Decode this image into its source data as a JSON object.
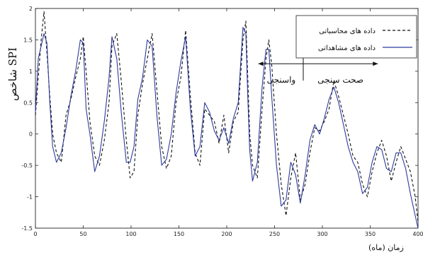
{
  "chart_data": {
    "type": "line",
    "ylabel": "شاخص SPI",
    "xlabel": "زمان (ماه)",
    "xlim": [
      0,
      400
    ],
    "ylim": [
      -1.5,
      2
    ],
    "xticks": [
      0,
      50,
      100,
      150,
      200,
      250,
      300,
      350,
      400
    ],
    "yticks": [
      -1.5,
      -1,
      -0.5,
      0,
      0.5,
      1,
      1.5,
      2
    ],
    "grid": false,
    "legend_position": "top-right",
    "series": [
      {
        "name": "داده های محاسباتی",
        "style": "dashed",
        "color": "#111111",
        "x": [
          0,
          3,
          6,
          9,
          12,
          15,
          18,
          22,
          27,
          32,
          37,
          42,
          47,
          50,
          53,
          57,
          62,
          67,
          72,
          77,
          80,
          85,
          90,
          95,
          99,
          103,
          107,
          112,
          117,
          122,
          127,
          132,
          137,
          142,
          147,
          152,
          157,
          162,
          167,
          172,
          177,
          182,
          187,
          192,
          197,
          202,
          207,
          212,
          217,
          220,
          222,
          224,
          227,
          232,
          237,
          241,
          244,
          247,
          252,
          257,
          262,
          267,
          272,
          277,
          282,
          287,
          292,
          297,
          302,
          307,
          312,
          317,
          322,
          327,
          332,
          337,
          342,
          347,
          352,
          357,
          362,
          367,
          372,
          377,
          382,
          387,
          392,
          397,
          400
        ],
        "y": [
          0.3,
          0.9,
          1.5,
          1.95,
          1.3,
          0.6,
          0.0,
          -0.3,
          -0.45,
          0.3,
          0.55,
          0.9,
          1.2,
          1.55,
          1.0,
          0.2,
          -0.35,
          -0.5,
          -0.1,
          0.5,
          1.4,
          1.6,
          0.8,
          -0.1,
          -0.7,
          -0.6,
          0.3,
          0.8,
          1.2,
          1.6,
          0.7,
          -0.2,
          -0.55,
          -0.35,
          0.5,
          0.9,
          1.65,
          0.6,
          -0.3,
          -0.5,
          0.4,
          0.3,
          0.2,
          -0.15,
          0.3,
          -0.3,
          0.2,
          0.35,
          1.5,
          1.8,
          0.9,
          0.0,
          -0.5,
          -0.7,
          0.4,
          1.2,
          1.5,
          1.1,
          0.0,
          -0.8,
          -1.3,
          -0.7,
          -0.3,
          -1.05,
          -0.8,
          -0.3,
          0.1,
          0.05,
          0.2,
          0.4,
          0.85,
          0.6,
          0.3,
          0.0,
          -0.35,
          -0.45,
          -0.8,
          -1.0,
          -0.6,
          -0.3,
          -0.1,
          -0.35,
          -0.75,
          -0.45,
          -0.2,
          -0.4,
          -0.6,
          -1.0,
          -1.4
        ]
      },
      {
        "name": "داده های مشاهداتی",
        "style": "solid",
        "color": "#2e3b9c",
        "x": [
          0,
          3,
          6,
          9,
          12,
          15,
          18,
          22,
          27,
          32,
          37,
          42,
          47,
          50,
          53,
          57,
          62,
          67,
          72,
          77,
          80,
          85,
          90,
          95,
          99,
          103,
          107,
          112,
          117,
          122,
          127,
          132,
          137,
          142,
          147,
          152,
          157,
          162,
          167,
          172,
          177,
          182,
          187,
          192,
          197,
          202,
          207,
          212,
          217,
          220,
          222,
          224,
          227,
          232,
          237,
          241,
          244,
          247,
          252,
          257,
          262,
          267,
          272,
          277,
          282,
          287,
          292,
          297,
          302,
          307,
          312,
          317,
          322,
          327,
          332,
          337,
          342,
          347,
          352,
          357,
          362,
          367,
          372,
          377,
          382,
          387,
          392,
          397,
          400
        ],
        "y": [
          0.35,
          1.2,
          1.4,
          1.6,
          1.45,
          0.5,
          -0.2,
          -0.45,
          -0.3,
          0.1,
          0.6,
          1.0,
          1.5,
          1.45,
          0.4,
          0.0,
          -0.6,
          -0.35,
          0.2,
          0.9,
          1.55,
          1.2,
          0.3,
          -0.45,
          -0.45,
          -0.2,
          0.55,
          0.9,
          1.5,
          1.4,
          0.3,
          -0.5,
          -0.4,
          0.0,
          0.65,
          1.15,
          1.55,
          0.4,
          -0.35,
          -0.2,
          0.5,
          0.35,
          0.05,
          -0.1,
          0.1,
          -0.15,
          0.25,
          0.5,
          1.7,
          1.6,
          0.6,
          -0.25,
          -0.75,
          -0.45,
          0.75,
          1.35,
          1.35,
          0.6,
          -0.5,
          -1.15,
          -1.05,
          -0.45,
          -0.65,
          -1.1,
          -0.65,
          -0.1,
          0.15,
          0.0,
          0.25,
          0.55,
          0.75,
          0.5,
          0.15,
          -0.2,
          -0.45,
          -0.6,
          -0.95,
          -0.85,
          -0.45,
          -0.2,
          -0.25,
          -0.55,
          -0.6,
          -0.3,
          -0.3,
          -0.55,
          -0.95,
          -1.3,
          -1.5
        ]
      }
    ],
    "annotations": [
      {
        "text": "واسنجی",
        "x_from": 233,
        "x_to": 280,
        "y": 1.12,
        "label_x": 257,
        "label_y": 0.82
      },
      {
        "text": "صحت سنجی",
        "x_from": 280,
        "x_to": 358,
        "y": 1.12,
        "label_x": 319,
        "label_y": 0.82
      }
    ],
    "divider_x": 280
  }
}
